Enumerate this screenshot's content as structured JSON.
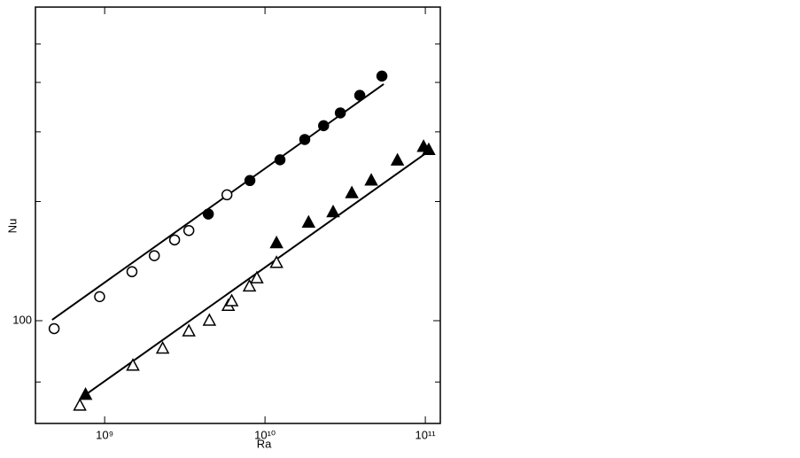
{
  "chart_data": {
    "type": "scatter",
    "xlabel": "Ra",
    "ylabel": "Nu",
    "log_x": true,
    "log_y": true,
    "color": "#000000",
    "xlim": [
      370000000,
      124000000000
    ],
    "ylim": [
      55,
      620
    ],
    "xticks": [
      {
        "value": 1000000000,
        "label": "10⁹"
      },
      {
        "value": 10000000000,
        "label": "10¹⁰"
      },
      {
        "value": 100000000000,
        "label": "10¹¹"
      }
    ],
    "yticks": [
      100
    ],
    "yticks_minor": [
      70,
      200,
      300,
      400,
      500
    ],
    "series": [
      {
        "marker": "circle",
        "filled": false,
        "x": [
          484000000,
          930000000,
          1480000000,
          2040000000,
          2730000000,
          3350000000,
          5790000000
        ],
        "values": [
          95.5,
          115,
          133,
          146,
          160,
          169,
          208
        ]
      },
      {
        "marker": "circle",
        "filled": true,
        "x": [
          4430000000,
          8050000000,
          12400000000,
          17700000000,
          23200000000,
          29500000000,
          39000000000,
          53600000000
        ],
        "values": [
          186,
          226,
          255,
          287,
          311,
          335,
          371,
          415
        ]
      },
      {
        "marker": "triangle",
        "filled": false,
        "x": [
          700000000,
          1500000000,
          2300000000,
          3350000000,
          4500000000,
          5900000000,
          6200000000,
          8000000000,
          8900000000,
          11800000000
        ],
        "values": [
          61,
          77,
          85,
          94,
          100,
          109,
          112,
          122,
          128,
          140
        ]
      },
      {
        "marker": "triangle",
        "filled": true,
        "x": [
          760000000,
          11800000000,
          18700000000,
          26600000000,
          34800000000,
          46000000000,
          67000000000,
          97500000000,
          105000000000
        ],
        "values": [
          65,
          157,
          177,
          188,
          210,
          226,
          254,
          275,
          270
        ]
      }
    ],
    "lines": [
      {
        "x": [
          470000000,
          55000000000
        ],
        "values": [
          100.5,
          396
        ]
      },
      {
        "x": [
          720000000,
          105000000000
        ],
        "values": [
          64,
          268
        ]
      }
    ]
  }
}
